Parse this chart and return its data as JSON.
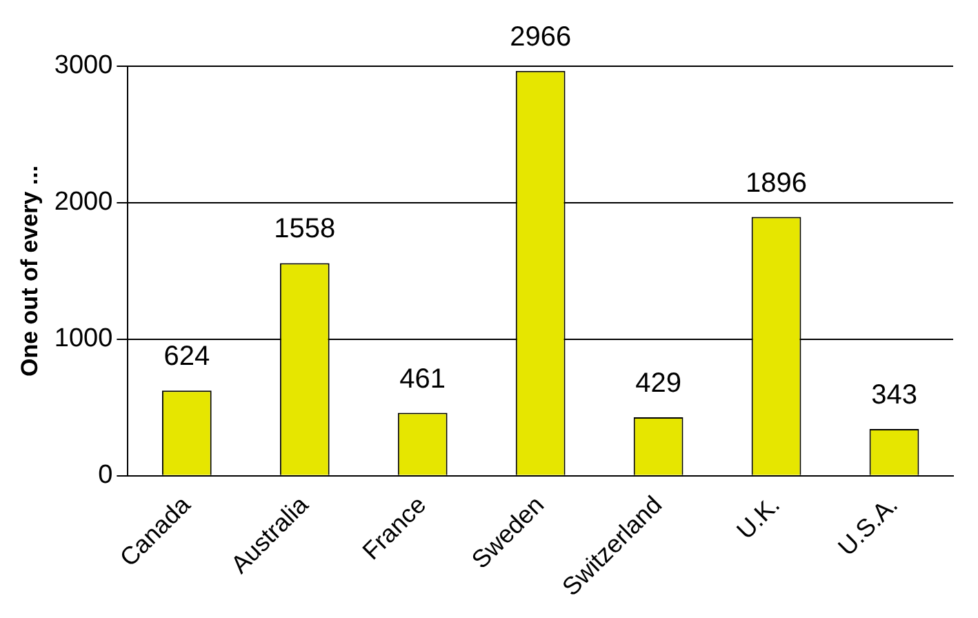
{
  "chart_data": {
    "type": "bar",
    "ylabel": "One out of every ...",
    "categories": [
      "Canada",
      "Australia",
      "France",
      "Sweden",
      "Switzerland",
      "U.K.",
      "U.S.A."
    ],
    "values": [
      624,
      1558,
      461,
      2966,
      429,
      1896,
      343
    ],
    "color": "#e6e600",
    "ylim": [
      0,
      3000
    ],
    "yticks": [
      0,
      1000,
      2000,
      3000
    ],
    "grid": "y",
    "data_labels": true,
    "legend": false
  }
}
